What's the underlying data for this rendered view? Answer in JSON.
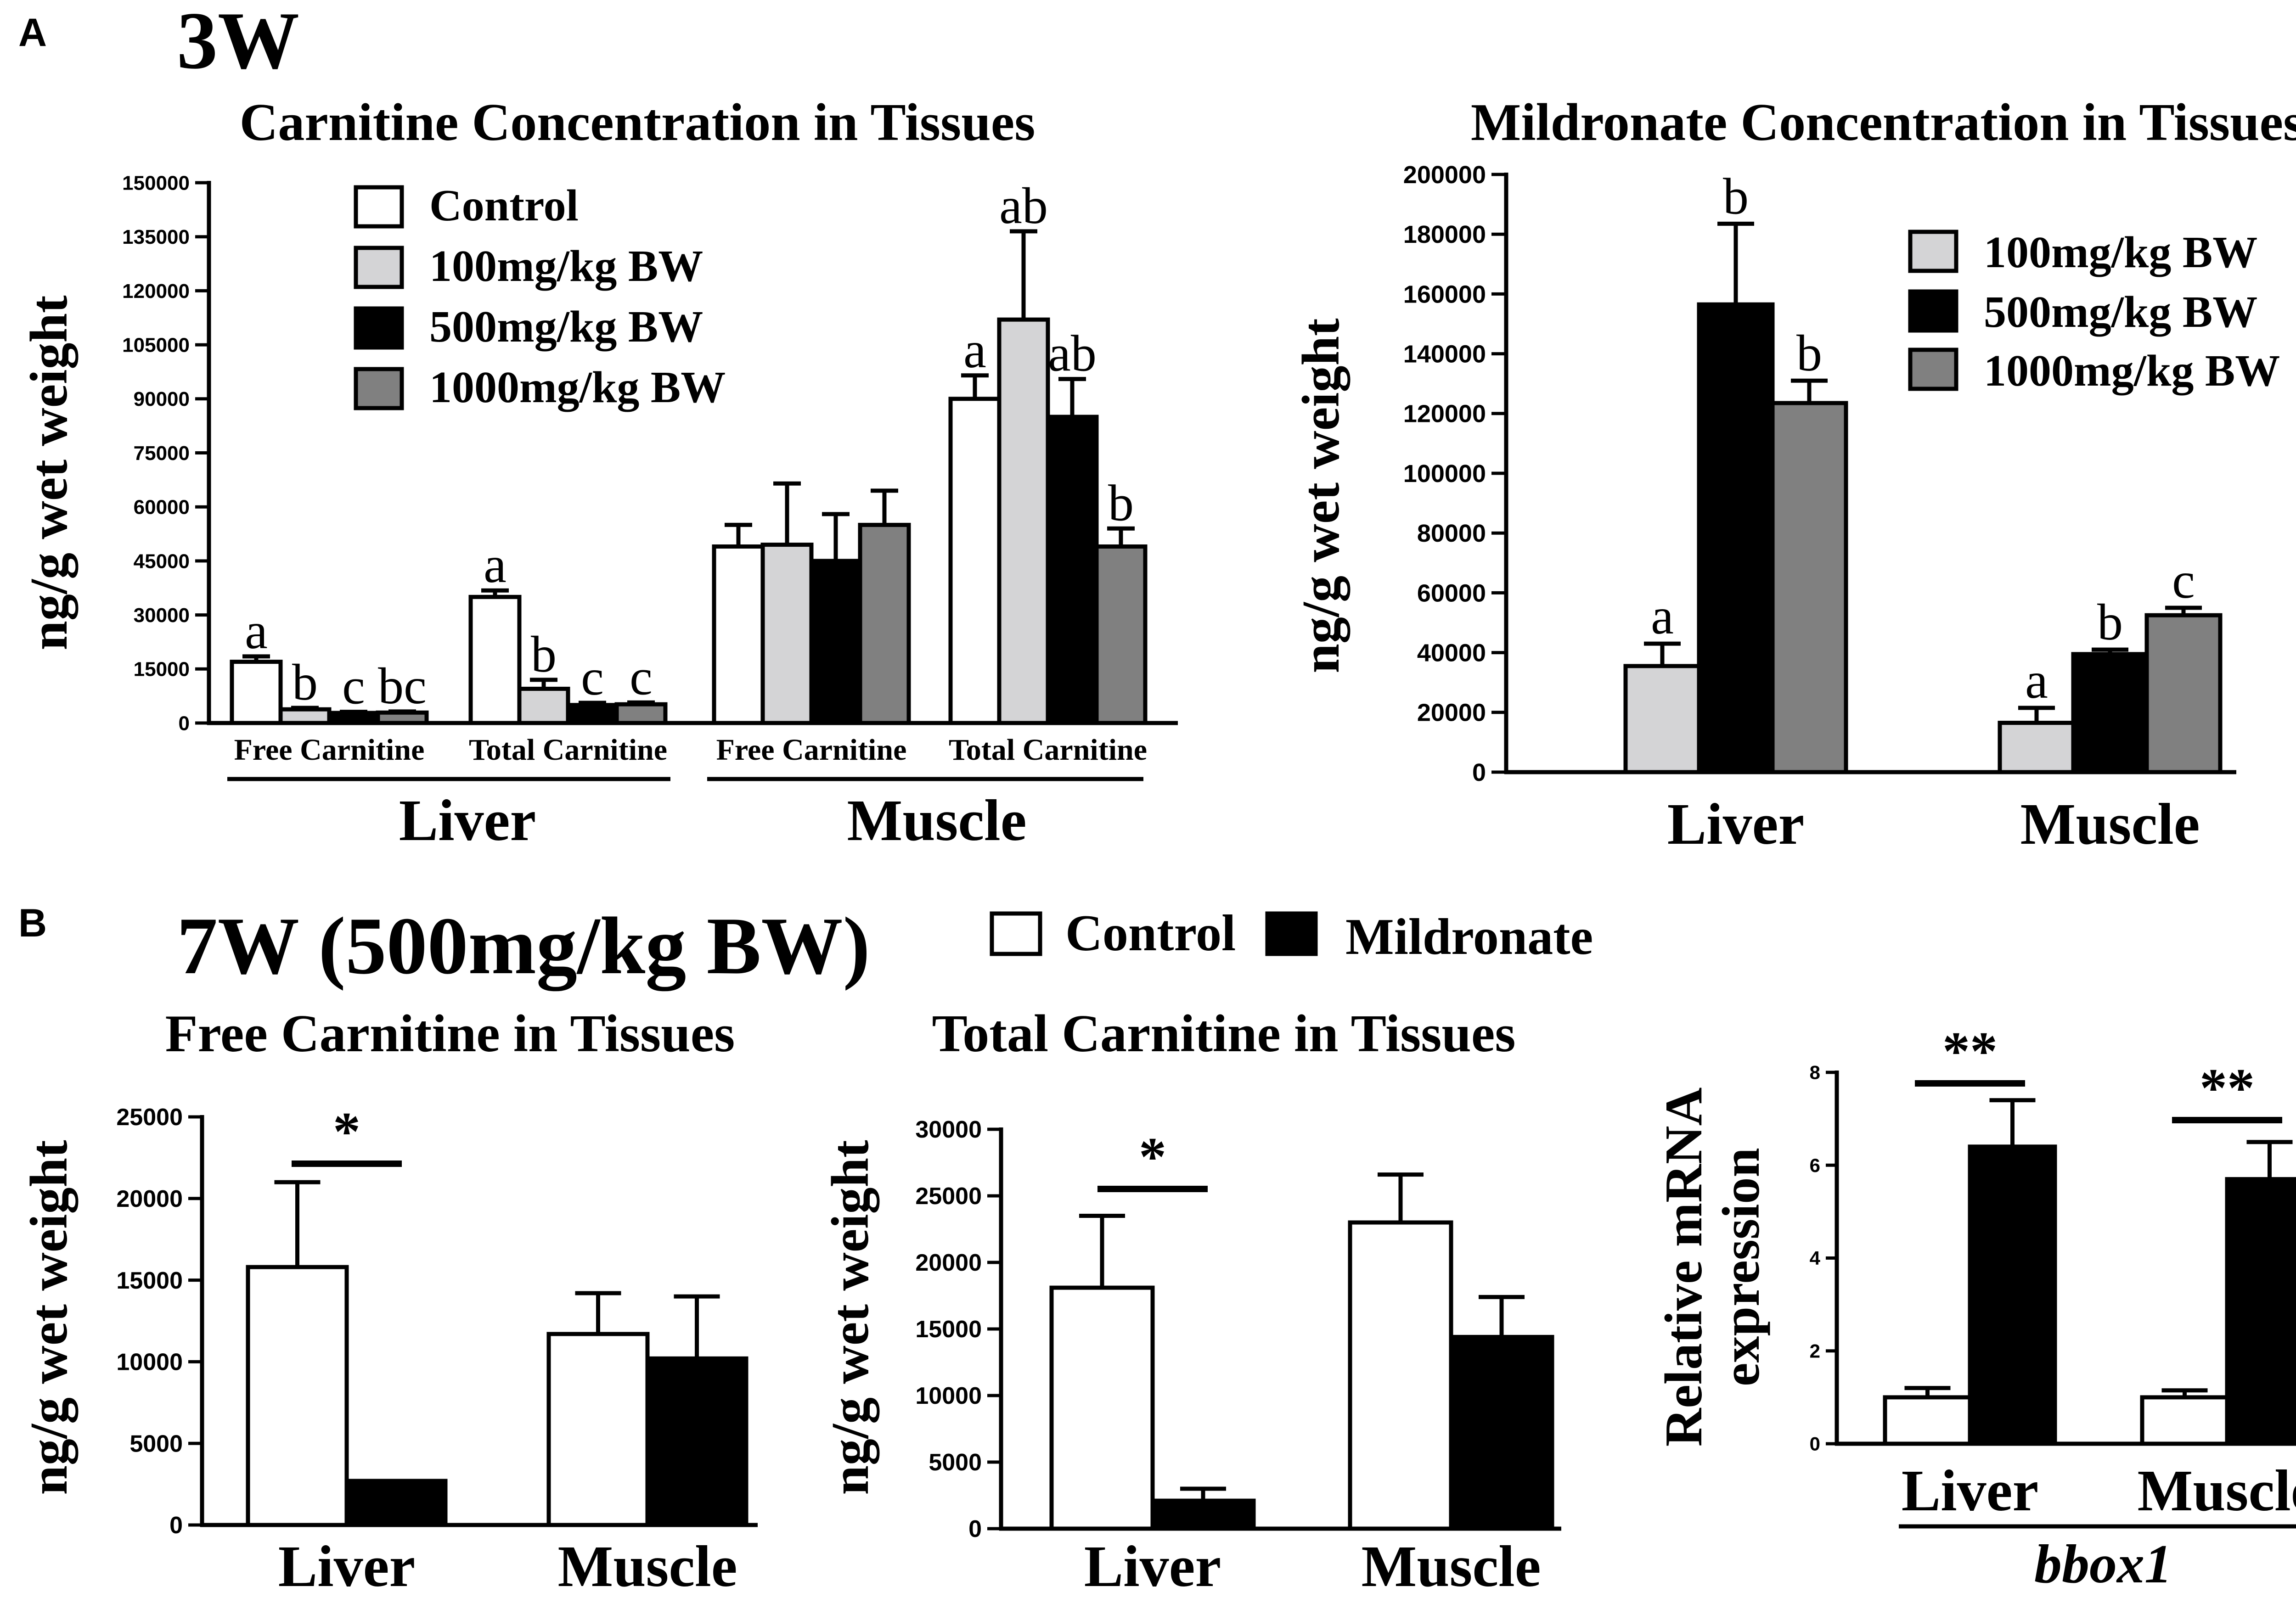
{
  "colors": {
    "control": "#ffffff",
    "dose100": "#d4d4d6",
    "dose500": "#000000",
    "dose1000": "#808080",
    "mildronate": "#000000",
    "axis": "#000000"
  },
  "panel_a": {
    "letter": "A",
    "heading": "3W"
  },
  "panel_b": {
    "letter": "B",
    "heading": "7W (500mg/kg BW)",
    "legend_control": "Control",
    "legend_mildronate": "Mildronate"
  },
  "chart_data": [
    {
      "id": "a1",
      "type": "bar",
      "title": "Carnitine Concentration in Tissues",
      "ylabel": "ng/g wet weight",
      "ylim": [
        0,
        150000
      ],
      "yticks": [
        "0",
        "15000",
        "30000",
        "45000",
        "60000",
        "75000",
        "90000",
        "105000",
        "120000",
        "135000",
        "150000"
      ],
      "legend": [
        "Control",
        "100mg/kg BW",
        "500mg/kg BW",
        "1000mg/kg BW"
      ],
      "groups": [
        {
          "label": "Free Carnitine",
          "tissue": "Liver",
          "values": [
            17000,
            3800,
            2800,
            2900
          ],
          "errors": [
            1500,
            400,
            300,
            300
          ],
          "letters": [
            "a",
            "b",
            "c",
            "bc"
          ]
        },
        {
          "label": "Total Carnitine",
          "tissue": "Liver",
          "values": [
            35000,
            9500,
            5000,
            5200
          ],
          "errors": [
            1800,
            2500,
            600,
            500
          ],
          "letters": [
            "a",
            "b",
            "c",
            "c"
          ]
        },
        {
          "label": "Free Carnitine",
          "tissue": "Muscle",
          "values": [
            49000,
            49500,
            45000,
            55000
          ],
          "errors": [
            6000,
            17000,
            13000,
            9500
          ],
          "letters": [
            "",
            "",
            "",
            ""
          ]
        },
        {
          "label": "Total Carnitine",
          "tissue": "Muscle",
          "values": [
            90000,
            112000,
            85000,
            49000
          ],
          "errors": [
            6500,
            24500,
            10500,
            5000
          ],
          "letters": [
            "a",
            "ab",
            "ab",
            "b"
          ]
        }
      ],
      "tissues": [
        "Liver",
        "Muscle"
      ]
    },
    {
      "id": "a2",
      "type": "bar",
      "title": "Mildronate Concentration in Tissues",
      "ylabel": "ng/g wet weight",
      "ylim": [
        0,
        200000
      ],
      "yticks": [
        "0",
        "20000",
        "40000",
        "60000",
        "80000",
        "100000",
        "120000",
        "140000",
        "160000",
        "180000",
        "200000"
      ],
      "legend": [
        "100mg/kg BW",
        "500mg/kg BW",
        "1000mg/kg BW"
      ],
      "categories": [
        "Liver",
        "Muscle"
      ],
      "series": [
        {
          "name": "100mg/kg BW",
          "values": [
            35500,
            16500
          ],
          "errors": [
            7500,
            5000
          ],
          "letters": [
            "a",
            "a"
          ]
        },
        {
          "name": "500mg/kg BW",
          "values": [
            156500,
            39500
          ],
          "errors": [
            27000,
            1500
          ],
          "letters": [
            "b",
            "b"
          ]
        },
        {
          "name": "1000mg/kg BW",
          "values": [
            123500,
            52500
          ],
          "errors": [
            7500,
            2500
          ],
          "letters": [
            "b",
            "c"
          ]
        }
      ]
    },
    {
      "id": "b1",
      "type": "bar",
      "title": "Free Carnitine in Tissues",
      "ylabel": "ng/g wet weight",
      "ylim": [
        0,
        25000
      ],
      "yticks": [
        "0",
        "5000",
        "10000",
        "15000",
        "20000",
        "25000"
      ],
      "categories": [
        "Liver",
        "Muscle"
      ],
      "series": [
        {
          "name": "Control",
          "values": [
            15800,
            11700
          ],
          "errors": [
            5200,
            2500
          ]
        },
        {
          "name": "Mildronate",
          "values": [
            2700,
            10200
          ],
          "errors": [
            0,
            3800
          ]
        }
      ],
      "significance": [
        {
          "category": "Liver",
          "label": "*"
        }
      ]
    },
    {
      "id": "b2",
      "type": "bar",
      "title": "Total Carnitine in Tissues",
      "ylabel": "ng/g wet weight",
      "ylim": [
        0,
        30000
      ],
      "yticks": [
        "0",
        "5000",
        "10000",
        "15000",
        "20000",
        "25000",
        "30000"
      ],
      "categories": [
        "Liver",
        "Muscle"
      ],
      "series": [
        {
          "name": "Control",
          "values": [
            18100,
            23000
          ],
          "errors": [
            5400,
            3600
          ]
        },
        {
          "name": "Mildronate",
          "values": [
            2100,
            14400
          ],
          "errors": [
            900,
            3000
          ]
        }
      ],
      "significance": [
        {
          "category": "Liver",
          "label": "*"
        }
      ]
    },
    {
      "id": "b3",
      "type": "bar",
      "title": "",
      "ylabel": "Relative mRNA expression",
      "ylabel_lines": [
        "Relative mRNA",
        "expression"
      ],
      "ylim": [
        0,
        8
      ],
      "yticks": [
        "0",
        "2",
        "4",
        "6",
        "8"
      ],
      "categories": [
        "Liver",
        "Muscle"
      ],
      "series": [
        {
          "name": "Control",
          "values": [
            1.0,
            1.0
          ],
          "errors": [
            0.2,
            0.15
          ]
        },
        {
          "name": "Mildronate",
          "values": [
            6.4,
            5.7
          ],
          "errors": [
            1.0,
            0.8
          ]
        }
      ],
      "significance": [
        {
          "category": "Liver",
          "label": "**"
        },
        {
          "category": "Muscle",
          "label": "**"
        }
      ],
      "xgroup_label": "bbox1"
    }
  ]
}
